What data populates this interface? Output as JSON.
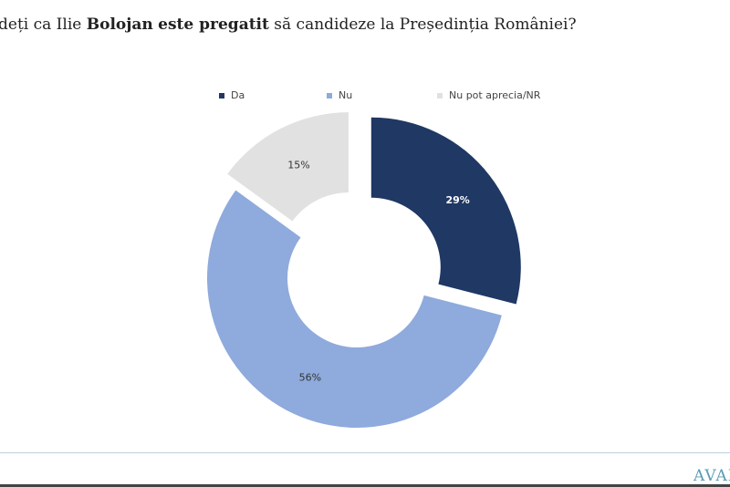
{
  "title": {
    "pre": "dеți ca Ilie ",
    "bold1": "Bolojan",
    "mid": " ",
    "bold2": "este pregatit",
    "post": " să candideze la Președinția României?"
  },
  "chart_data": {
    "type": "pie",
    "donut": true,
    "title": "dеți ca Ilie Bolojan este pregatit să candideze la Președinția României?",
    "legend_position": "top",
    "series": [
      {
        "name": "Da",
        "value": 29,
        "label": "29%",
        "color": "#1f3864",
        "label_color": "#ffffff",
        "exploded": true
      },
      {
        "name": "Nu",
        "value": 56,
        "label": "56%",
        "color": "#8faadc",
        "label_color": "#333333",
        "exploded": false
      },
      {
        "name": "Nu pot aprecia/NR",
        "value": 15,
        "label": "15%",
        "color": "#e1e1e1",
        "label_color": "#333333",
        "exploded": true
      }
    ]
  },
  "footer": {
    "logo": "AVAN"
  }
}
